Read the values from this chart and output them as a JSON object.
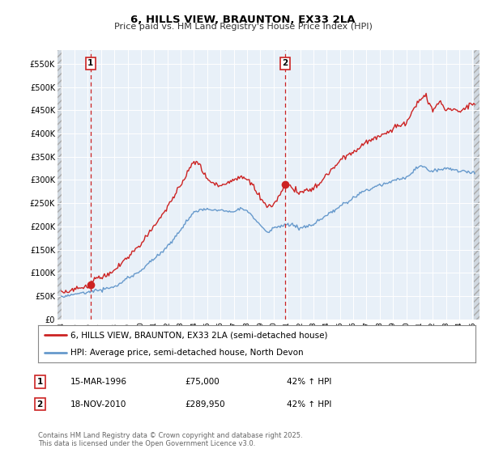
{
  "title": "6, HILLS VIEW, BRAUNTON, EX33 2LA",
  "subtitle": "Price paid vs. HM Land Registry's House Price Index (HPI)",
  "red_color": "#cc2222",
  "blue_color": "#6699cc",
  "dashed_color": "#cc2222",
  "hatch_bg": "#e8e8e8",
  "plot_bg": "#e8f0f8",
  "grid_color": "#ffffff",
  "ylim": [
    0,
    580000
  ],
  "yticks": [
    0,
    50000,
    100000,
    150000,
    200000,
    250000,
    300000,
    350000,
    400000,
    450000,
    500000,
    550000
  ],
  "ytick_labels": [
    "£0",
    "£50K",
    "£100K",
    "£150K",
    "£200K",
    "£250K",
    "£300K",
    "£350K",
    "£400K",
    "£450K",
    "£500K",
    "£550K"
  ],
  "xstart": 1993.7,
  "xend": 2025.5,
  "hatch_xend": 1994.08,
  "sale1_x": 1996.21,
  "sale1_y": 75000,
  "sale2_x": 2010.88,
  "sale2_y": 289950,
  "legend_label_red": "6, HILLS VIEW, BRAUNTON, EX33 2LA (semi-detached house)",
  "legend_label_blue": "HPI: Average price, semi-detached house, North Devon",
  "annotation1_date": "15-MAR-1996",
  "annotation1_price": "£75,000",
  "annotation1_hpi": "42% ↑ HPI",
  "annotation2_date": "18-NOV-2010",
  "annotation2_price": "£289,950",
  "annotation2_hpi": "42% ↑ HPI",
  "footnote": "Contains HM Land Registry data © Crown copyright and database right 2025.\nThis data is licensed under the Open Government Licence v3.0.",
  "xticks": [
    1994,
    1995,
    1996,
    1997,
    1998,
    1999,
    2000,
    2001,
    2002,
    2003,
    2004,
    2005,
    2006,
    2007,
    2008,
    2009,
    2010,
    2011,
    2012,
    2013,
    2014,
    2015,
    2016,
    2017,
    2018,
    2019,
    2020,
    2021,
    2022,
    2023,
    2024,
    2025
  ]
}
